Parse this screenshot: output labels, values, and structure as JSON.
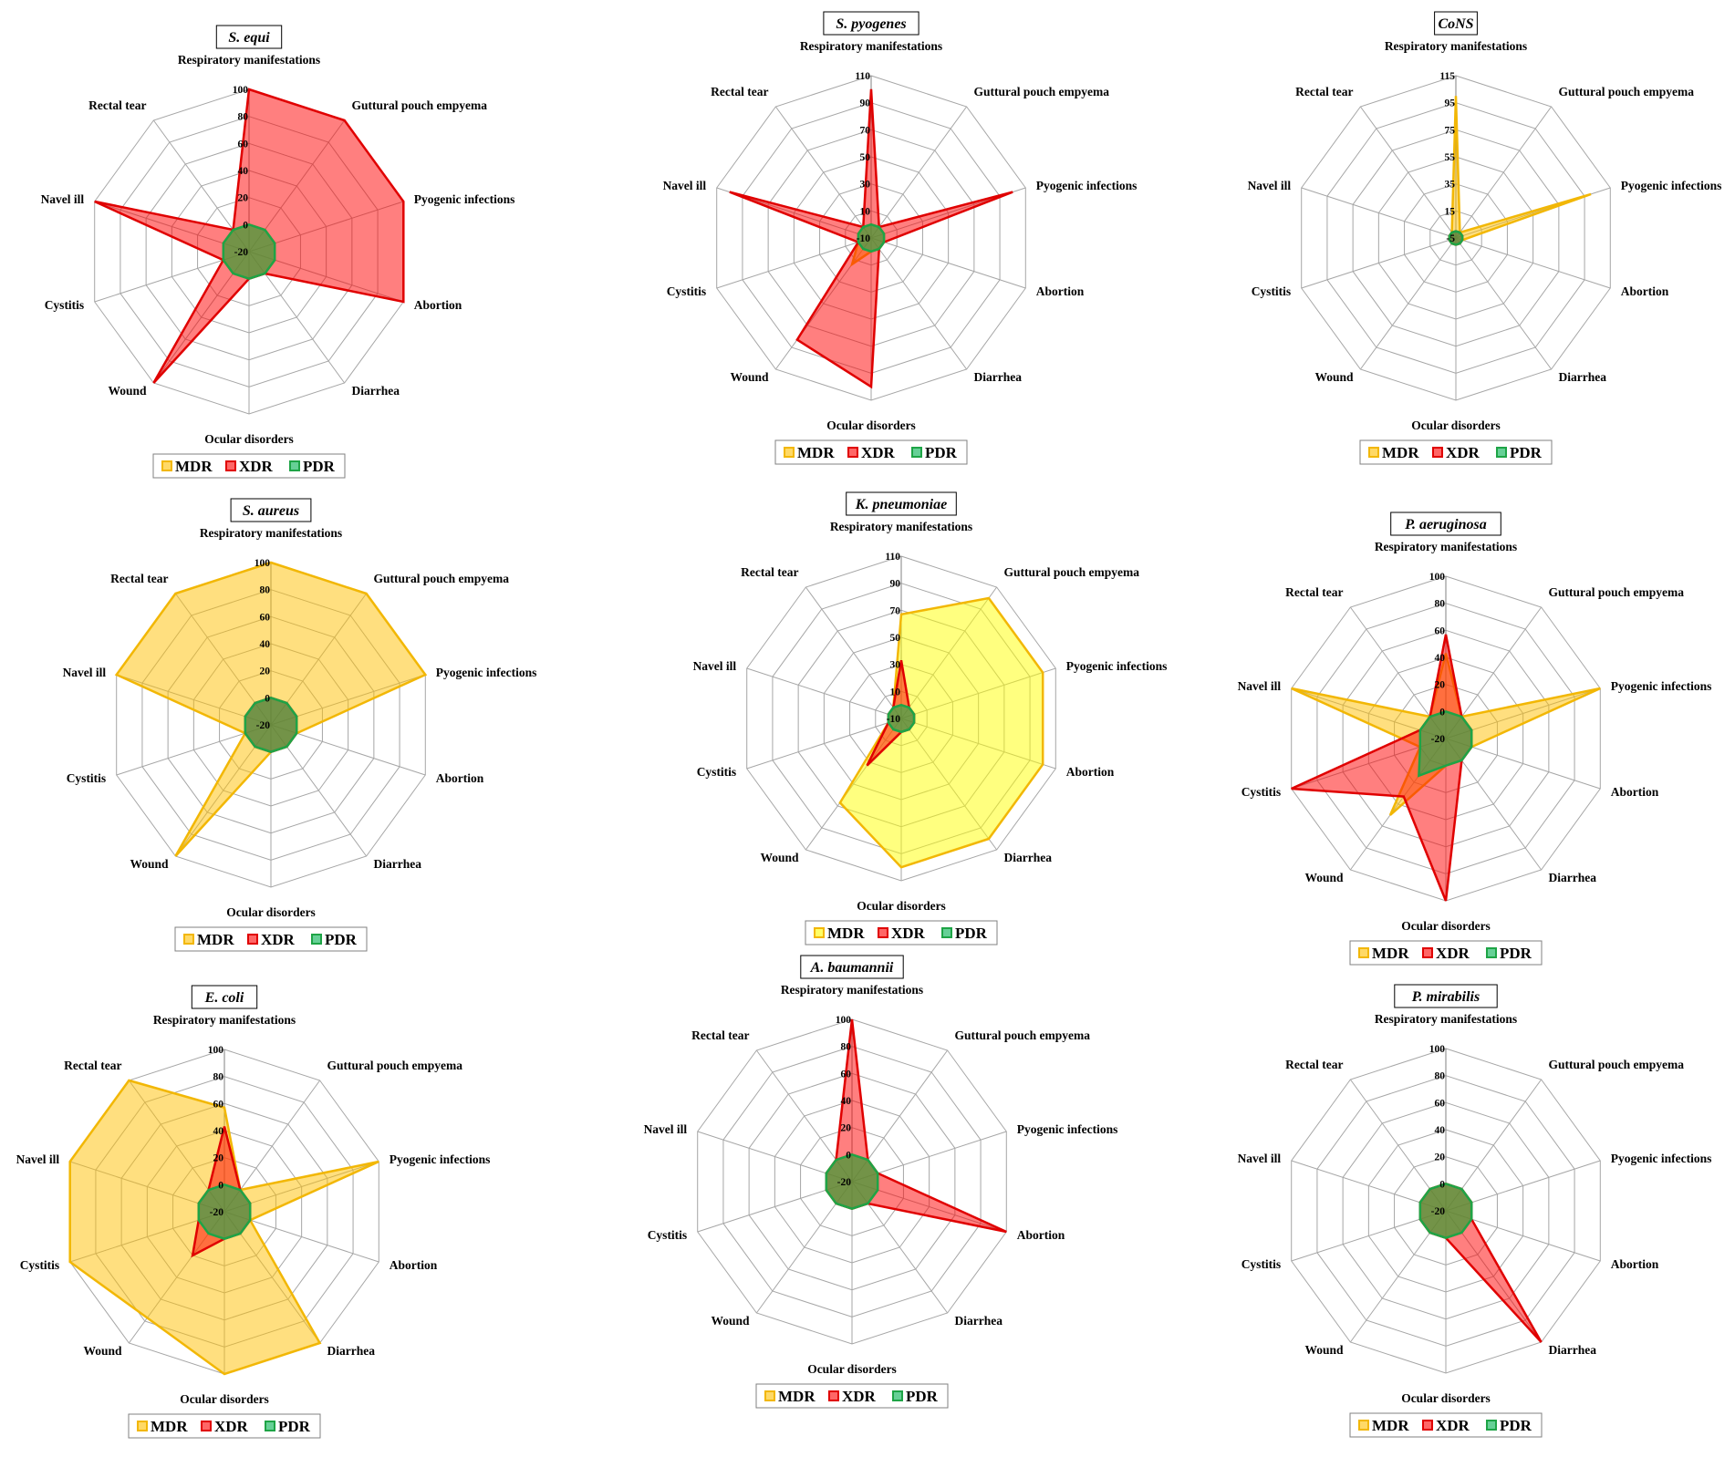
{
  "chart_data": {
    "type": "radar",
    "categories": [
      "Respiratory manifestations",
      "Guttural pouch empyema",
      "Pyogenic infections",
      "Abortion",
      "Diarrhea",
      "Ocular disorders",
      "Wound",
      "Cystitis",
      "Navel ill",
      "Rectal tear"
    ],
    "legend": [
      "MDR",
      "XDR",
      "PDR"
    ],
    "colors": {
      "MDR": "#FFC000",
      "MDR_alt": "#FFFF00",
      "XDR": "#FF0000",
      "PDR": "#00B050",
      "grid": "#A6A6A6"
    },
    "charts": [
      {
        "title": "S. equi",
        "rlim": [
          -20,
          100
        ],
        "ticks": [
          "-20",
          "0",
          "20",
          "40",
          "60",
          "80",
          "100"
        ],
        "mdr_style": "orange",
        "series": [
          {
            "name": "MDR",
            "values": [
              0,
              0,
              0,
              0,
              0,
              0,
              0,
              0,
              0,
              0
            ]
          },
          {
            "name": "XDR",
            "values": [
              100,
              100,
              100,
              100,
              0,
              0,
              100,
              0,
              100,
              0
            ]
          },
          {
            "name": "PDR",
            "values": [
              0,
              0,
              0,
              0,
              0,
              0,
              0,
              0,
              0,
              0
            ]
          }
        ]
      },
      {
        "title": "S. pyogenes",
        "rlim": [
          -10,
          110
        ],
        "ticks": [
          "-10",
          "10",
          "30",
          "50",
          "70",
          "90",
          "110"
        ],
        "mdr_style": "orange",
        "series": [
          {
            "name": "MDR",
            "values": [
              0,
              0,
              0,
              0,
              0,
              0,
              14,
              0,
              0,
              0
            ]
          },
          {
            "name": "XDR",
            "values": [
              100,
              0,
              100,
              0,
              0,
              100,
              83,
              0,
              100,
              0
            ]
          },
          {
            "name": "PDR",
            "values": [
              0,
              0,
              0,
              0,
              0,
              0,
              0,
              0,
              0,
              0
            ]
          }
        ]
      },
      {
        "title": "CoNS",
        "rlim": [
          -5,
          115
        ],
        "ticks": [
          "-5",
          "15",
          "35",
          "55",
          "75",
          "95",
          "115"
        ],
        "mdr_style": "orange",
        "series": [
          {
            "name": "MDR",
            "values": [
              100,
              0,
              100,
              0,
              0,
              0,
              0,
              0,
              0,
              0
            ]
          },
          {
            "name": "XDR",
            "values": [
              0,
              0,
              0,
              0,
              0,
              0,
              0,
              0,
              0,
              0
            ]
          },
          {
            "name": "PDR",
            "values": [
              0,
              0,
              0,
              0,
              0,
              0,
              0,
              0,
              0,
              0
            ]
          }
        ]
      },
      {
        "title": "S. aureus",
        "rlim": [
          -20,
          100
        ],
        "ticks": [
          "-20",
          "0",
          "20",
          "40",
          "60",
          "80",
          "100"
        ],
        "mdr_style": "orange",
        "series": [
          {
            "name": "MDR",
            "values": [
              100,
              100,
              100,
              0,
              0,
              0,
              100,
              0,
              100,
              100
            ]
          },
          {
            "name": "XDR",
            "values": [
              0,
              0,
              0,
              0,
              0,
              0,
              0,
              0,
              0,
              0
            ]
          },
          {
            "name": "PDR",
            "values": [
              0,
              0,
              0,
              0,
              0,
              0,
              0,
              0,
              0,
              0
            ]
          }
        ]
      },
      {
        "title": "K. pneumoniae",
        "rlim": [
          -10,
          110
        ],
        "ticks": [
          "-10",
          "10",
          "30",
          "50",
          "70",
          "90",
          "110"
        ],
        "mdr_style": "yellow",
        "series": [
          {
            "name": "MDR",
            "values": [
              67,
              100,
              100,
              100,
              100,
              100,
              67,
              0,
              0,
              0
            ]
          },
          {
            "name": "XDR",
            "values": [
              33,
              0,
              0,
              0,
              0,
              0,
              33,
              0,
              0,
              0
            ]
          },
          {
            "name": "PDR",
            "values": [
              0,
              0,
              0,
              0,
              0,
              0,
              0,
              0,
              0,
              0
            ]
          }
        ]
      },
      {
        "title": "P. aeruginosa",
        "rlim": [
          -20,
          100
        ],
        "ticks": [
          "-20",
          "0",
          "20",
          "40",
          "60",
          "80",
          "100"
        ],
        "mdr_style": "orange",
        "series": [
          {
            "name": "MDR",
            "values": [
              43,
              0,
              100,
              0,
              0,
              0,
              50,
              0,
              100,
              0
            ]
          },
          {
            "name": "XDR",
            "values": [
              57,
              0,
              0,
              0,
              0,
              100,
              33,
              100,
              0,
              0
            ]
          },
          {
            "name": "PDR",
            "values": [
              0,
              0,
              0,
              0,
              0,
              0,
              14,
              0,
              0,
              0
            ]
          }
        ]
      },
      {
        "title": "E. coli",
        "rlim": [
          -20,
          100
        ],
        "ticks": [
          "-20",
          "0",
          "20",
          "40",
          "60",
          "80",
          "100"
        ],
        "mdr_style": "orange",
        "series": [
          {
            "name": "MDR",
            "values": [
              57,
              0,
              100,
              0,
              100,
              100,
              77,
              100,
              100,
              100
            ]
          },
          {
            "name": "XDR",
            "values": [
              43,
              0,
              0,
              0,
              0,
              0,
              20,
              0,
              0,
              0
            ]
          },
          {
            "name": "PDR",
            "values": [
              0,
              0,
              0,
              0,
              0,
              0,
              0,
              0,
              0,
              0
            ]
          }
        ]
      },
      {
        "title": "A. baumannii",
        "rlim": [
          -20,
          100
        ],
        "ticks": [
          "-20",
          "0",
          "20",
          "40",
          "60",
          "80",
          "100"
        ],
        "mdr_style": "orange",
        "series": [
          {
            "name": "MDR",
            "values": [
              0,
              0,
              0,
              0,
              0,
              0,
              0,
              0,
              0,
              0
            ]
          },
          {
            "name": "XDR",
            "values": [
              100,
              0,
              0,
              100,
              0,
              0,
              0,
              0,
              0,
              0
            ]
          },
          {
            "name": "PDR",
            "values": [
              0,
              0,
              0,
              0,
              0,
              0,
              0,
              0,
              0,
              0
            ]
          }
        ]
      },
      {
        "title": "P. mirabilis",
        "rlim": [
          -20,
          100
        ],
        "ticks": [
          "-20",
          "0",
          "20",
          "40",
          "60",
          "80",
          "100"
        ],
        "mdr_style": "orange",
        "series": [
          {
            "name": "MDR",
            "values": [
              0,
              0,
              0,
              0,
              0,
              0,
              0,
              0,
              0,
              0
            ]
          },
          {
            "name": "XDR",
            "values": [
              0,
              0,
              0,
              0,
              100,
              0,
              0,
              0,
              0,
              0
            ]
          },
          {
            "name": "PDR",
            "values": [
              0,
              0,
              0,
              0,
              0,
              0,
              0,
              0,
              0,
              0
            ]
          }
        ]
      }
    ]
  }
}
